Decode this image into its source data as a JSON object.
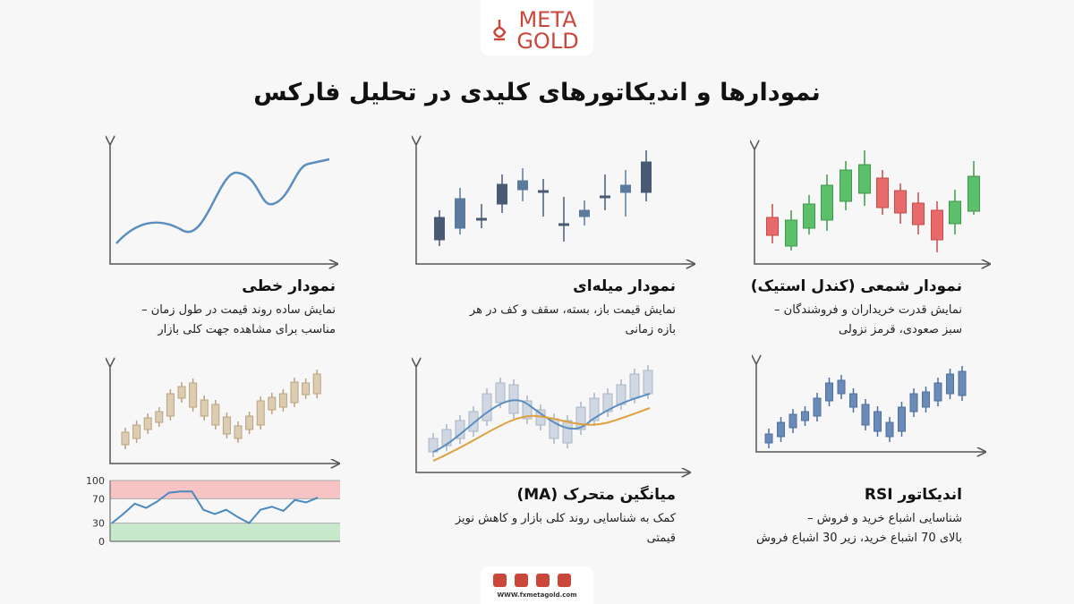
{
  "logo": {
    "line1": "META",
    "line2": "GOLD"
  },
  "title": "نمودارها و اندیکاتورهای کلیدی در تحلیل فارکس",
  "panels": [
    {
      "heading": "نمودار شمعی (کندل استیک)",
      "description": [
        "نمایش قدرت خریداران و فروشندگان –",
        "سبز صعودی، قرمز نزولی"
      ]
    },
    {
      "heading": "نمودار میله‌ای",
      "description": [
        "نمایش قیمت باز، بسته، سقف و کف در هر",
        "بازه زمانی"
      ]
    },
    {
      "heading": "نمودار خطی",
      "description": [
        "نمایش ساده روند قیمت در طول زمان –",
        "مناسب برای مشاهده جهت کلی بازار"
      ]
    },
    {
      "heading": "اندیکاتور RSI",
      "description": [
        "شناسایی اشباع خرید و فروش –",
        "بالای 70 اشباع خرید، زیر 30 اشباع فروش"
      ]
    },
    {
      "heading": "میانگین متحرک (MA)",
      "description": [
        "کمک به شناسایی روند کلی بازار و کاهش نویز",
        "قیمتی"
      ]
    }
  ],
  "rsi_chart": {
    "type": "line",
    "ylim": [
      0,
      100
    ],
    "yticks": [
      100,
      70,
      30,
      0
    ],
    "values": [
      30,
      45,
      62,
      55,
      66,
      80,
      82,
      82,
      52,
      45,
      52,
      40,
      30,
      52,
      57,
      50,
      68,
      64,
      72
    ]
  },
  "footer": {
    "website": "WWW.fxmetagold.com"
  }
}
